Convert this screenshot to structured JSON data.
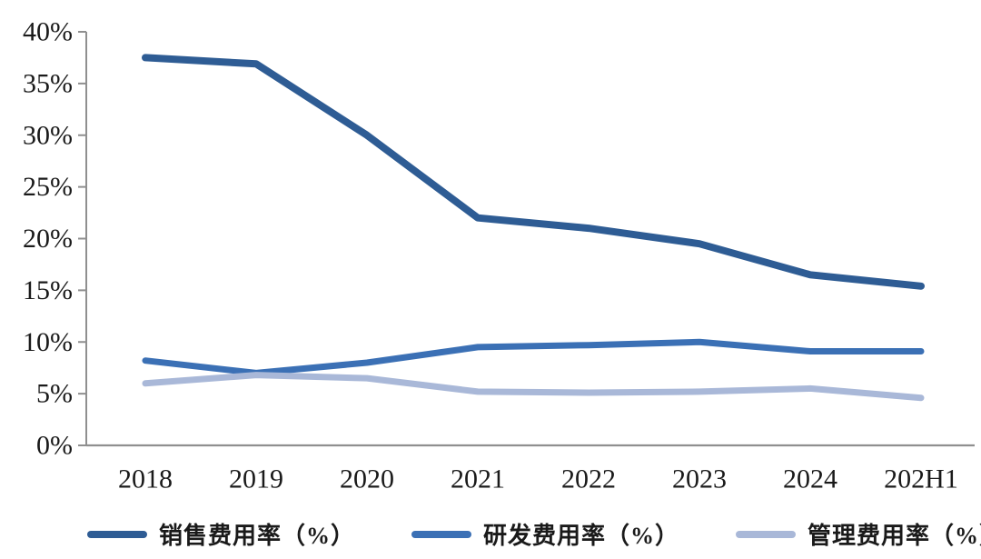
{
  "chart_data": {
    "type": "line",
    "categories": [
      "2018",
      "2019",
      "2020",
      "2021",
      "2022",
      "2023",
      "2024",
      "202H1"
    ],
    "series": [
      {
        "key": "sales-expense-ratio",
        "name": "销售费用率（%）",
        "color": "#2e5c94",
        "values": [
          37.5,
          36.9,
          30.0,
          22.0,
          21.0,
          19.5,
          16.5,
          15.4
        ]
      },
      {
        "key": "rd-expense-ratio",
        "name": "研发费用率（%）",
        "color": "#3b70b5",
        "values": [
          8.2,
          7.0,
          8.0,
          9.5,
          9.7,
          10.0,
          9.1,
          9.1
        ]
      },
      {
        "key": "admin-expense-ratio",
        "name": "管理费用率（%）",
        "color": "#a9b8d8",
        "values": [
          6.0,
          6.8,
          6.5,
          5.2,
          5.1,
          5.2,
          5.5,
          4.6
        ]
      }
    ],
    "title": "",
    "xlabel": "",
    "ylabel": "",
    "ylim": [
      0,
      40
    ],
    "y_tick_step": 5,
    "y_tick_labels": [
      "0%",
      "5%",
      "10%",
      "15%",
      "20%",
      "25%",
      "30%",
      "35%",
      "40%"
    ],
    "grid": false,
    "legend_position": "bottom"
  },
  "colors": {
    "axis": "#8f8f8f",
    "tick_text": "#1a1a1a",
    "background": "#ffffff"
  }
}
